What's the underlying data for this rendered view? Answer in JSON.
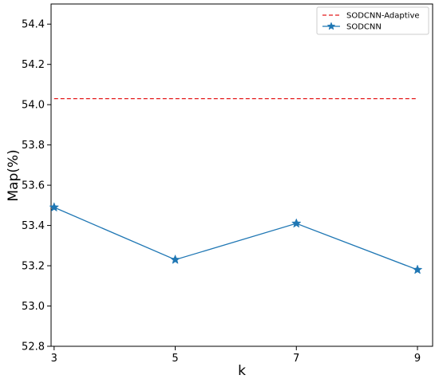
{
  "chart_data": {
    "type": "line",
    "title": "",
    "xlabel": "k",
    "ylabel": "Map(%)",
    "x": [
      3,
      5,
      7,
      9
    ],
    "xticks": [
      "3",
      "5",
      "7",
      "9"
    ],
    "ylim": [
      52.8,
      54.5
    ],
    "yticks": [
      "52.8",
      "53.0",
      "53.2",
      "53.4",
      "53.6",
      "53.8",
      "54.0",
      "54.2",
      "54.4"
    ],
    "grid": false,
    "legend_position": "top-right",
    "series": [
      {
        "name": "SODCNN-Adaptive",
        "values": [
          54.03,
          54.03,
          54.03,
          54.03
        ],
        "style": "dashed",
        "color": "#e41a1c",
        "marker": "none"
      },
      {
        "name": "SODCNN",
        "values": [
          53.49,
          53.23,
          53.41,
          53.18
        ],
        "style": "solid",
        "color": "#1f77b4",
        "marker": "star"
      }
    ]
  }
}
